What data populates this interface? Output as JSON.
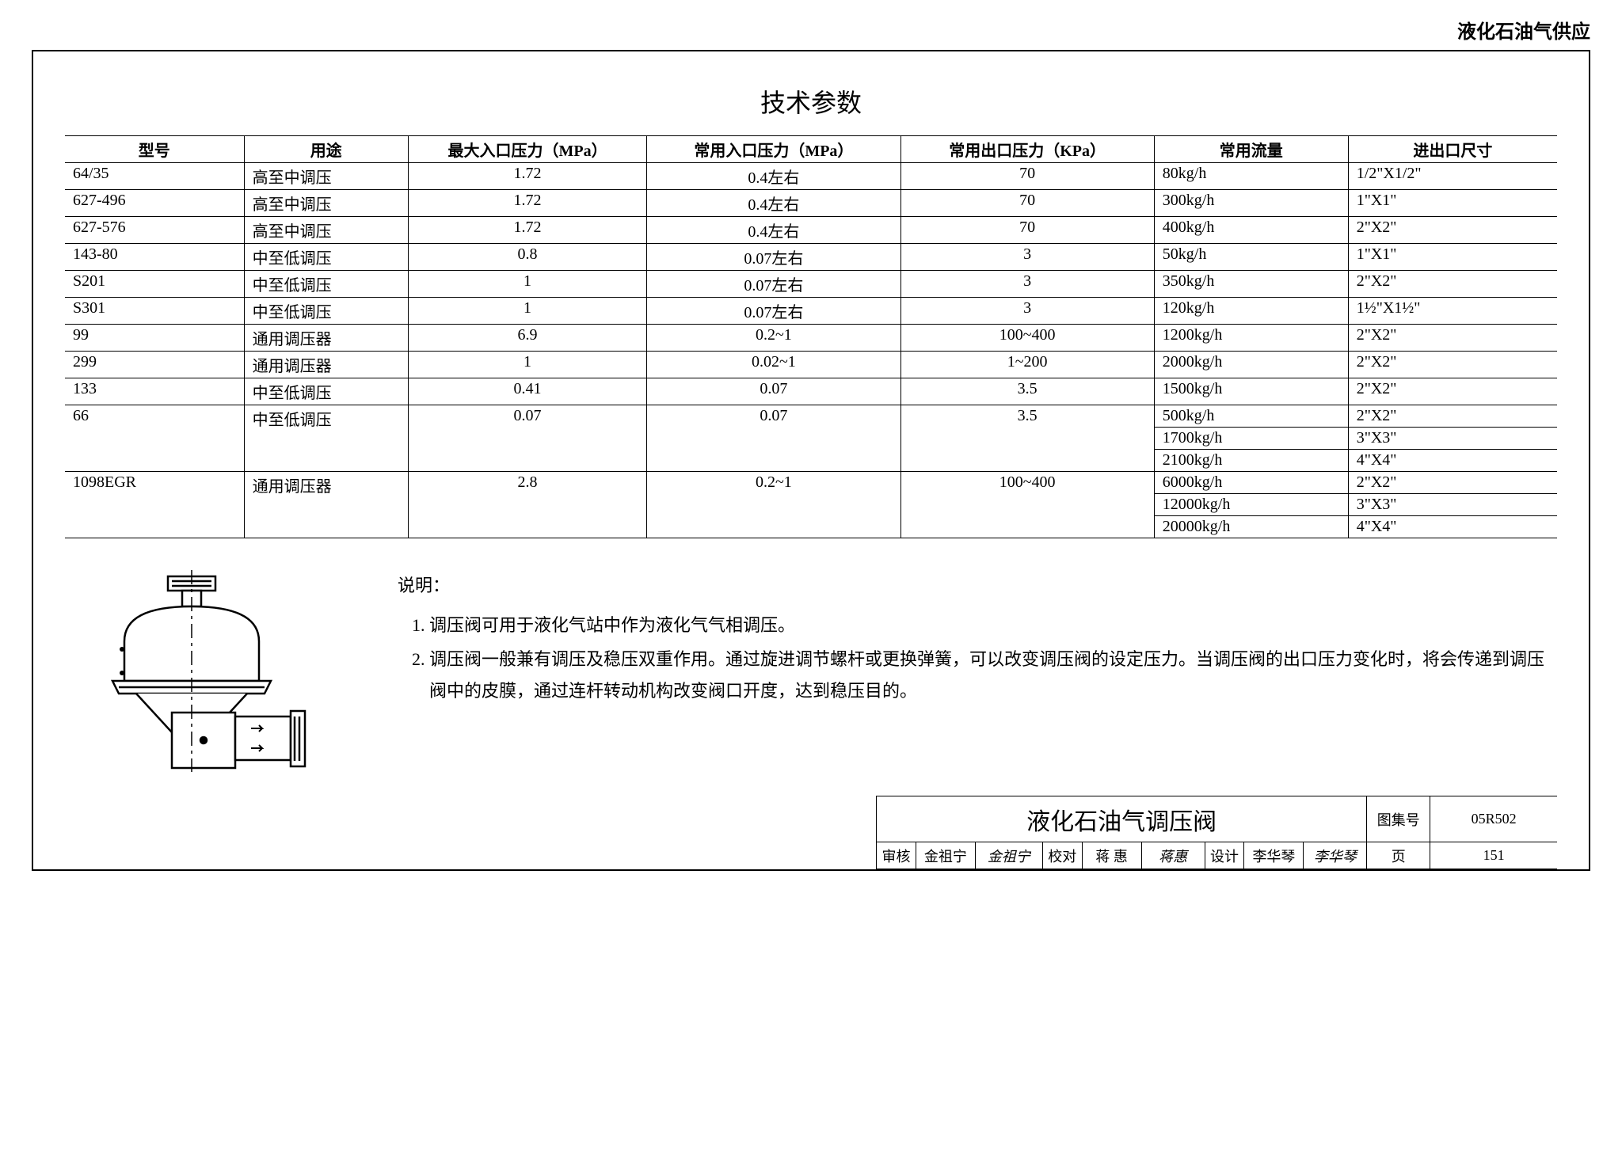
{
  "header": {
    "category": "液化石油气供应"
  },
  "title": "技术参数",
  "table": {
    "columns": [
      "型号",
      "用途",
      "最大入口压力（MPa）",
      "常用入口压力（MPa）",
      "常用出口压力（KPa）",
      "常用流量",
      "进出口尺寸"
    ],
    "col_widths_pct": [
      12,
      11,
      16,
      17,
      17,
      13,
      14
    ],
    "rows": [
      [
        "64/35",
        "高至中调压",
        "1.72",
        "0.4左右",
        "70",
        "80kg/h",
        "1/2\"X1/2\""
      ],
      [
        "627-496",
        "高至中调压",
        "1.72",
        "0.4左右",
        "70",
        "300kg/h",
        "1\"X1\""
      ],
      [
        "627-576",
        "高至中调压",
        "1.72",
        "0.4左右",
        "70",
        "400kg/h",
        "2\"X2\""
      ],
      [
        "143-80",
        "中至低调压",
        "0.8",
        "0.07左右",
        "3",
        "50kg/h",
        "1\"X1\""
      ],
      [
        "S201",
        "中至低调压",
        "1",
        "0.07左右",
        "3",
        "350kg/h",
        "2\"X2\""
      ],
      [
        "S301",
        "中至低调压",
        "1",
        "0.07左右",
        "3",
        "120kg/h",
        "1½\"X1½\""
      ],
      [
        "99",
        "通用调压器",
        "6.9",
        "0.2~1",
        "100~400",
        "1200kg/h",
        "2\"X2\""
      ],
      [
        "299",
        "通用调压器",
        "1",
        "0.02~1",
        "1~200",
        "2000kg/h",
        "2\"X2\""
      ],
      [
        "133",
        "中至低调压",
        "0.41",
        "0.07",
        "3.5",
        "1500kg/h",
        "2\"X2\""
      ],
      [
        "66",
        "中至低调压",
        "0.07",
        "0.07",
        "3.5",
        "500kg/h",
        "2\"X2\""
      ],
      [
        "",
        "",
        "",
        "",
        "",
        "1700kg/h",
        "3\"X3\""
      ],
      [
        "",
        "",
        "",
        "",
        "",
        "2100kg/h",
        "4\"X4\""
      ],
      [
        "1098EGR",
        "通用调压器",
        "2.8",
        "0.2~1",
        "100~400",
        "6000kg/h",
        "2\"X2\""
      ],
      [
        "",
        "",
        "",
        "",
        "",
        "12000kg/h",
        "3\"X3\""
      ],
      [
        "",
        "",
        "",
        "",
        "",
        "20000kg/h",
        "4\"X4\""
      ]
    ],
    "rowspans": {
      "9": {
        "cols0to4_span": 3
      },
      "12": {
        "cols0to4_span": 3
      }
    },
    "center_cols": [
      2,
      3,
      4
    ]
  },
  "notes": {
    "heading": "说明：",
    "items": [
      "调压阀可用于液化气站中作为液化气气相调压。",
      "调压阀一般兼有调压及稳压双重作用。通过旋进调节螺杆或更换弹簧，可以改变调压阀的设定压力。当调压阀的出口压力变化时，将会传递到调压阀中的皮膜，通过连杆转动机构改变阀口开度，达到稳压目的。"
    ]
  },
  "titleblock": {
    "drawing_title": "液化石油气调压阀",
    "atlas_label": "图集号",
    "atlas_no": "05R502",
    "review_label": "审核",
    "review_name": "金祖宁",
    "review_sign": "金祖宁",
    "check_label": "校对",
    "check_name": "蒋 惠",
    "check_sign": "蒋惠",
    "design_label": "设计",
    "design_name": "李华琴",
    "design_sign": "李华琴",
    "page_label": "页",
    "page_no": "151"
  },
  "style": {
    "font_body_pt": 20,
    "font_title_pt": 32,
    "border_color": "#000000",
    "background_color": "#ffffff",
    "text_color": "#000000"
  }
}
